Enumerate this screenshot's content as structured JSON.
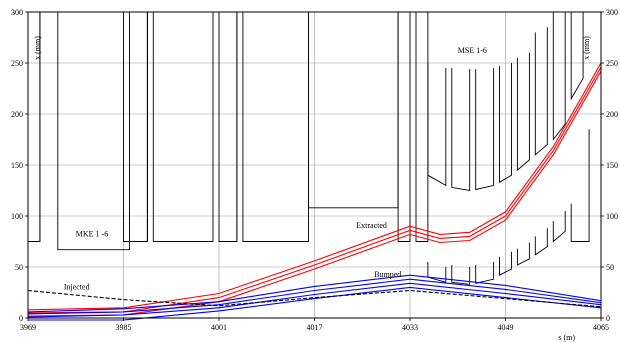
{
  "chart_data": {
    "type": "line",
    "title": "",
    "xlabel": "s (m)",
    "ylabel": "x (mm)",
    "y2label": "x (mm)",
    "xlim": [
      3969,
      4065
    ],
    "ylim": [
      0,
      300
    ],
    "xticks": [
      3969,
      3985,
      4001,
      4017,
      4033,
      4049,
      4065
    ],
    "yticks": [
      0,
      50,
      100,
      150,
      200,
      250,
      300
    ],
    "grid": true,
    "annotations": [
      {
        "text": "MSE 1-6",
        "x": 4041,
        "y": 260
      },
      {
        "text": "MKE 1 -6",
        "x": 3977,
        "y": 80
      },
      {
        "text": "Extracted",
        "x": 4024,
        "y": 88
      },
      {
        "text": "Bumped",
        "x": 4027,
        "y": 40
      },
      {
        "text": "Injected",
        "x": 3975,
        "y": 28
      }
    ],
    "series": [
      {
        "group": "Extracted",
        "color": "#ff0000",
        "x": [
          3969,
          3985,
          4001,
          4017,
          4033,
          4038,
          4043,
          4049,
          4057,
          4065
        ],
        "y": [
          2,
          3,
          16,
          48,
          82,
          74,
          76,
          96,
          160,
          242
        ]
      },
      {
        "group": "Extracted",
        "color": "#ff0000",
        "x": [
          3969,
          3985,
          4001,
          4017,
          4033,
          4038,
          4043,
          4049,
          4057,
          4065
        ],
        "y": [
          5,
          6,
          20,
          52,
          86,
          78,
          80,
          100,
          164,
          246
        ]
      },
      {
        "group": "Extracted",
        "color": "#ff0000",
        "x": [
          3969,
          3985,
          4001,
          4017,
          4033,
          4038,
          4043,
          4049,
          4057,
          4065
        ],
        "y": [
          8,
          10,
          24,
          56,
          90,
          82,
          84,
          104,
          168,
          250
        ]
      },
      {
        "group": "Bumped",
        "color": "#0000ff",
        "x": [
          3969,
          3985,
          4001,
          4017,
          4033,
          4049,
          4065
        ],
        "y": [
          -2,
          -2,
          7,
          19,
          30,
          20,
          10
        ]
      },
      {
        "group": "Bumped",
        "color": "#0000ff",
        "x": [
          3969,
          3985,
          4001,
          4017,
          4033,
          4049,
          4065
        ],
        "y": [
          1,
          3,
          10,
          23,
          34,
          24,
          13
        ]
      },
      {
        "group": "Bumped",
        "color": "#0000ff",
        "x": [
          3969,
          3985,
          4001,
          4017,
          4033,
          4049,
          4065
        ],
        "y": [
          4,
          6,
          13,
          27,
          38,
          28,
          15
        ]
      },
      {
        "group": "Bumped",
        "color": "#0000ff",
        "x": [
          3969,
          3985,
          4001,
          4017,
          4033,
          4049,
          4065
        ],
        "y": [
          6,
          9,
          16,
          31,
          42,
          32,
          17
        ]
      },
      {
        "group": "Injected",
        "color": "#000000",
        "dashed": true,
        "x": [
          3969,
          3985,
          4001,
          4017,
          4033,
          4049,
          4065
        ],
        "y": [
          27,
          18,
          12,
          20,
          27,
          19,
          11
        ]
      }
    ],
    "apertures": [
      [
        [
          3969,
          300
        ],
        [
          3969,
          75
        ],
        [
          3971,
          75
        ],
        [
          3971,
          300
        ]
      ],
      [
        [
          3971,
          300
        ],
        [
          3971,
          75
        ],
        [
          3971,
          75
        ]
      ],
      [
        [
          3974,
          300
        ],
        [
          3974,
          67
        ],
        [
          3986,
          67
        ],
        [
          3986,
          300
        ]
      ],
      [
        [
          3985,
          300
        ],
        [
          3985,
          75
        ],
        [
          3989,
          75
        ],
        [
          3989,
          300
        ]
      ],
      [
        [
          3989,
          300
        ],
        [
          3989,
          75
        ],
        [
          3989,
          75
        ]
      ],
      [
        [
          3989,
          300
        ],
        [
          3989,
          75
        ],
        [
          3989,
          75
        ]
      ],
      [
        [
          3990,
          300
        ],
        [
          3990,
          75
        ],
        [
          4000,
          75
        ],
        [
          4000,
          300
        ]
      ],
      [
        [
          4001,
          300
        ],
        [
          4001,
          75
        ],
        [
          4004,
          75
        ],
        [
          4004,
          300
        ]
      ],
      [
        [
          4004,
          300
        ],
        [
          4004,
          75
        ],
        [
          4004,
          75
        ]
      ],
      [
        [
          4005,
          300
        ],
        [
          4005,
          75
        ],
        [
          4016,
          75
        ],
        [
          4016,
          300
        ]
      ],
      [
        [
          4016,
          300
        ],
        [
          4016,
          108
        ],
        [
          4031,
          108
        ],
        [
          4031,
          300
        ]
      ],
      [
        [
          4031,
          300
        ],
        [
          4031,
          75
        ],
        [
          4033,
          75
        ],
        [
          4033,
          300
        ]
      ],
      [
        [
          4034,
          300
        ],
        [
          4034,
          75
        ],
        [
          4036,
          75
        ],
        [
          4036,
          300
        ]
      ],
      [
        [
          4036,
          250
        ],
        [
          4036,
          140
        ],
        [
          4039,
          130
        ],
        [
          4039,
          245
        ]
      ],
      [
        [
          4040,
          245
        ],
        [
          4040,
          128
        ],
        [
          4043,
          125
        ],
        [
          4043,
          244
        ]
      ],
      [
        [
          4044,
          244
        ],
        [
          4044,
          126
        ],
        [
          4047,
          130
        ],
        [
          4047,
          245
        ]
      ],
      [
        [
          4048,
          247
        ],
        [
          4048,
          133
        ],
        [
          4050,
          140
        ],
        [
          4050,
          250
        ]
      ],
      [
        [
          4051,
          255
        ],
        [
          4051,
          145
        ],
        [
          4053,
          155
        ],
        [
          4053,
          260
        ]
      ],
      [
        [
          4054,
          280
        ],
        [
          4054,
          160
        ],
        [
          4056,
          170
        ],
        [
          4056,
          285
        ]
      ],
      [
        [
          4057,
          300
        ],
        [
          4057,
          175
        ],
        [
          4059,
          190
        ],
        [
          4059,
          300
        ]
      ],
      [
        [
          4060,
          300
        ],
        [
          4060,
          215
        ],
        [
          4062,
          235
        ],
        [
          4062,
          300
        ]
      ],
      [
        [
          4036,
          55
        ],
        [
          4036,
          40
        ],
        [
          4039,
          35
        ],
        [
          4039,
          50
        ]
      ],
      [
        [
          4040,
          52
        ],
        [
          4040,
          35
        ],
        [
          4043,
          33
        ],
        [
          4043,
          50
        ]
      ],
      [
        [
          4044,
          52
        ],
        [
          4044,
          34
        ],
        [
          4047,
          38
        ],
        [
          4047,
          55
        ]
      ],
      [
        [
          4048,
          60
        ],
        [
          4048,
          42
        ],
        [
          4050,
          48
        ],
        [
          4050,
          65
        ]
      ],
      [
        [
          4051,
          68
        ],
        [
          4051,
          52
        ],
        [
          4053,
          58
        ],
        [
          4053,
          74
        ]
      ],
      [
        [
          4054,
          80
        ],
        [
          4054,
          62
        ],
        [
          4056,
          70
        ],
        [
          4056,
          88
        ]
      ],
      [
        [
          4057,
          95
        ],
        [
          4057,
          75
        ],
        [
          4059,
          85
        ],
        [
          4059,
          105
        ]
      ],
      [
        [
          4060,
          112
        ],
        [
          4060,
          75
        ],
        [
          4063,
          75
        ],
        [
          4063,
          185
        ]
      ]
    ]
  }
}
